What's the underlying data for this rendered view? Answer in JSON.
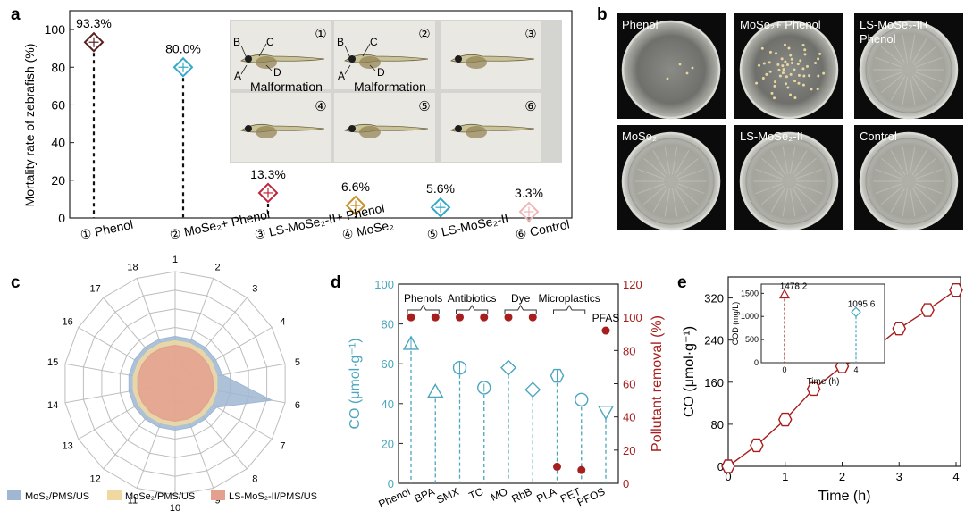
{
  "panels": {
    "a": "a",
    "b": "b",
    "c": "c",
    "d": "d",
    "e": "e"
  },
  "a": {
    "ylabel": "Mortality rate of zebrafish (%)",
    "yticks": [
      "0",
      "20",
      "40",
      "60",
      "80",
      "100"
    ],
    "photo_nums": [
      "①",
      "②",
      "③",
      "④",
      "⑤",
      "⑥"
    ],
    "marker_A": "A",
    "marker_B": "B",
    "marker_C": "C",
    "marker_D": "D",
    "malformation": "Malformation",
    "xlabels": [
      "① Phenol",
      "② MoSe₂+ Phenol",
      "③ LS-MoSe₂-II+ Phenol",
      "④ MoSe₂",
      "⑤ LS-MoSe₂-II",
      "⑥ Control"
    ]
  },
  "b": {
    "dishes": [
      "Phenol",
      "MoSe₂+ Phenol",
      "LS-MoSe₂-II+",
      "Phenol",
      "MoSe₂",
      "LS-MoSe₂-II",
      "Control"
    ]
  },
  "c": {
    "spokes": [
      "1",
      "2",
      "3",
      "4",
      "5",
      "6",
      "7",
      "8",
      "9",
      "10",
      "11",
      "12",
      "13",
      "14",
      "15",
      "16",
      "17",
      "18"
    ],
    "legend": [
      "MoS₂/PMS/US",
      "MoSe₂/PMS/US",
      "LS-MoS₂-II/PMS/US"
    ]
  },
  "d": {
    "ylabel_left": "CO (μmol·g⁻¹)",
    "ylabel_right": "Pollutant removal (%)",
    "yticks_left": [
      "0",
      "20",
      "40",
      "60",
      "80",
      "100"
    ],
    "yticks_right": [
      "0",
      "20",
      "40",
      "60",
      "80",
      "100",
      "120"
    ],
    "groups": [
      "Phenols",
      "Antibiotics",
      "Dye",
      "Microplastics",
      "PFAS"
    ]
  },
  "e": {
    "xlabel": "Time (h)",
    "ylabel": "CO (μmol·g⁻¹)",
    "xticks": [
      "0",
      "1",
      "2",
      "3",
      "4"
    ],
    "yticks": [
      "0",
      "80",
      "160",
      "240",
      "320"
    ],
    "inset_ylabel": "COD (mg/L)",
    "inset_xlabel": "Time (h)",
    "inset_yticks": [
      "0",
      "500",
      "1000",
      "1500"
    ],
    "inset_xticks": [
      "0",
      "4"
    ],
    "inset_labels": [
      "1478.2",
      "1095.6"
    ]
  },
  "chart_data": [
    {
      "type": "scatter",
      "panel": "a",
      "title": "",
      "ylabel": "Mortality rate of zebrafish (%)",
      "ylim": [
        0,
        110
      ],
      "categories": [
        "① Phenol",
        "② MoSe₂+ Phenol",
        "③ LS-MoSe₂-II+ Phenol",
        "④ MoSe₂",
        "⑤ LS-MoSe₂-II",
        "⑥ Control"
      ],
      "values": [
        93.3,
        80.0,
        13.3,
        6.6,
        5.6,
        3.3
      ],
      "value_labels": [
        "93.3%",
        "80.0%",
        "13.3%",
        "6.6%",
        "5.6%",
        "3.3%"
      ],
      "colors": [
        "#5a1f1f",
        "#35a9c9",
        "#c0253a",
        "#c8902a",
        "#35a9c9",
        "#f0b5b5"
      ]
    },
    {
      "type": "radar",
      "panel": "c",
      "spokes": 18,
      "rmax": 1.0,
      "series": [
        {
          "name": "MoS₂/PMS/US",
          "color": "#9fb7d2",
          "values": [
            0.42,
            0.42,
            0.42,
            0.42,
            0.43,
            0.88,
            0.43,
            0.42,
            0.42,
            0.42,
            0.42,
            0.42,
            0.42,
            0.42,
            0.42,
            0.42,
            0.42,
            0.42
          ]
        },
        {
          "name": "MoSe₂/PMS/US",
          "color": "#f0d9a0",
          "values": [
            0.38,
            0.38,
            0.38,
            0.38,
            0.38,
            0.38,
            0.38,
            0.38,
            0.38,
            0.38,
            0.38,
            0.38,
            0.38,
            0.38,
            0.38,
            0.38,
            0.38,
            0.38
          ]
        },
        {
          "name": "LS-MoS₂-II/PMS/US",
          "color": "#e4a08e",
          "values": [
            0.34,
            0.34,
            0.34,
            0.34,
            0.34,
            0.35,
            0.34,
            0.34,
            0.34,
            0.34,
            0.34,
            0.34,
            0.34,
            0.34,
            0.34,
            0.34,
            0.34,
            0.34
          ]
        }
      ]
    },
    {
      "type": "scatter",
      "panel": "d",
      "categories": [
        "Phenol",
        "BPA",
        "SMX",
        "TC",
        "MO",
        "RhB",
        "PLA",
        "PET",
        "PFOS"
      ],
      "series": [
        {
          "name": "CO",
          "axis": "left",
          "ylim": [
            0,
            100
          ],
          "values": [
            70,
            46,
            58,
            48,
            58,
            47,
            54,
            42,
            36
          ],
          "errors": [
            3,
            0,
            3,
            2,
            0,
            0,
            3,
            0,
            0
          ]
        },
        {
          "name": "Pollutant removal",
          "axis": "right",
          "ylim": [
            0,
            120
          ],
          "values": [
            100,
            100,
            100,
            100,
            100,
            100,
            10,
            8,
            92
          ]
        }
      ]
    },
    {
      "type": "line",
      "panel": "e",
      "xlabel": "Time (h)",
      "ylabel": "CO (μmol·g⁻¹)",
      "xlim": [
        0,
        4
      ],
      "ylim": [
        0,
        360
      ],
      "x": [
        0,
        0.5,
        1,
        1.5,
        2,
        2.5,
        3,
        3.5,
        4
      ],
      "values": [
        0,
        40,
        89,
        147,
        190,
        218,
        262,
        297,
        335
      ]
    },
    {
      "type": "scatter",
      "panel": "e-inset",
      "xlabel": "Time (h)",
      "ylabel": "COD (mg/L)",
      "ylim": [
        0,
        1700
      ],
      "x": [
        0,
        4
      ],
      "values": [
        1478.2,
        1095.6
      ],
      "value_labels": [
        "1478.2",
        "1095.6"
      ]
    }
  ]
}
